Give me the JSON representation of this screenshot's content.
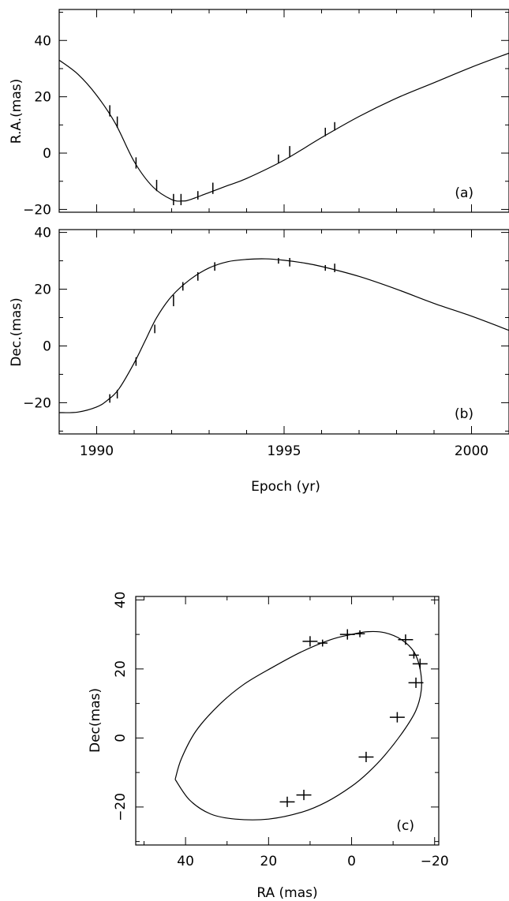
{
  "chart_data": [
    {
      "type": "line",
      "panel_label": "(a)",
      "ylabel": "R.A.(mas)",
      "xlabel": "",
      "xlim": [
        1989,
        2001
      ],
      "ylim": [
        -21,
        51
      ],
      "xticks": [
        1990,
        1995,
        2000
      ],
      "yticks": [
        -20,
        0,
        20,
        40
      ],
      "xtick_labels": [
        "",
        "",
        ""
      ],
      "ytick_labels": [
        "−20",
        "0",
        "20",
        "40"
      ],
      "model": {
        "x": [
          1989.0,
          1989.5,
          1990.0,
          1990.5,
          1991.0,
          1991.5,
          1992.0,
          1992.3,
          1992.5,
          1993.0,
          1993.5,
          1994.0,
          1995.0,
          1996.0,
          1997.0,
          1998.0,
          1999.0,
          2000.0,
          2001.0
        ],
        "y": [
          33,
          28,
          20.5,
          10.5,
          -3,
          -12,
          -16.5,
          -17,
          -16.5,
          -14,
          -11.5,
          -9,
          -2.5,
          5.5,
          13,
          19.5,
          25,
          30.5,
          35.5
        ]
      },
      "points": {
        "x": [
          1990.35,
          1990.55,
          1991.05,
          1991.6,
          1992.05,
          1992.25,
          1992.7,
          1993.1,
          1994.85,
          1995.15,
          1996.1,
          1996.35
        ],
        "y": [
          15,
          11,
          -3.5,
          -11.5,
          -16.5,
          -16.5,
          -15,
          -12.5,
          -2,
          0.5,
          7.5,
          9.5
        ],
        "yerr": [
          2,
          2,
          2,
          2,
          2,
          2,
          1.5,
          2,
          1.5,
          2,
          1.5,
          1.5
        ],
        "xerr": [
          0,
          0,
          0,
          0,
          0,
          0,
          0,
          0,
          0,
          0,
          0,
          0
        ]
      }
    },
    {
      "type": "line",
      "panel_label": "(b)",
      "ylabel": "Dec.(mas)",
      "xlabel": "Epoch (yr)",
      "xlim": [
        1989,
        2001
      ],
      "ylim": [
        -31,
        41
      ],
      "xticks": [
        1990,
        1995,
        2000
      ],
      "yticks": [
        -20,
        0,
        20,
        40
      ],
      "xtick_labels": [
        "1990",
        "1995",
        "2000"
      ],
      "ytick_labels": [
        "−20",
        "0",
        "20",
        "40"
      ],
      "model": {
        "x": [
          1989.0,
          1989.5,
          1990.0,
          1990.3,
          1990.6,
          1991.0,
          1991.3,
          1991.6,
          1992.0,
          1992.5,
          1993.0,
          1993.5,
          1994.0,
          1994.5,
          1995.0,
          1995.5,
          1996.0,
          1997.0,
          1998.0,
          1999.0,
          2000.0,
          2001.0
        ],
        "y": [
          -23.5,
          -23.3,
          -21.5,
          -19,
          -15,
          -6,
          2,
          10,
          17.5,
          23.5,
          27.5,
          29.7,
          30.5,
          30.7,
          30.2,
          29.3,
          28,
          24.5,
          20,
          15,
          10.5,
          5.5
        ]
      },
      "points": {
        "x": [
          1990.35,
          1990.55,
          1991.05,
          1991.55,
          1992.05,
          1992.3,
          1992.7,
          1993.15,
          1994.85,
          1995.15,
          1996.1,
          1996.35
        ],
        "y": [
          -18.5,
          -17,
          -5.5,
          6,
          16,
          21,
          24.5,
          28,
          30,
          29.5,
          27.5,
          27.5
        ],
        "yerr": [
          1.5,
          1.5,
          1.5,
          1.5,
          2,
          1.5,
          1.5,
          1.5,
          1,
          1.5,
          1,
          1.5
        ],
        "xerr": [
          0,
          0,
          0,
          0,
          0,
          0,
          0,
          0,
          0,
          0,
          0,
          0
        ]
      }
    },
    {
      "type": "scatter",
      "panel_label": "(c)",
      "xlabel": "RA (mas)",
      "ylabel": "Dec(mas)",
      "xlim": [
        52,
        -21
      ],
      "ylim": [
        -31,
        41
      ],
      "xticks": [
        40,
        20,
        0,
        -20
      ],
      "yticks": [
        -20,
        0,
        20,
        40
      ],
      "xtick_labels": [
        "40",
        "20",
        "0",
        "−20"
      ],
      "ytick_labels": [
        "−20",
        "0",
        "20",
        "40"
      ],
      "model": {
        "x": [
          42.5,
          41.0,
          37.5,
          32,
          26,
          19,
          12,
          5,
          0,
          -4,
          -8,
          -12,
          -15,
          -16.5,
          -16.8,
          -15.5,
          -12.5,
          -8,
          -4,
          0,
          6,
          12,
          20,
          28,
          34,
          39,
          42.5
        ],
        "y": [
          -12,
          -6,
          2,
          9.5,
          15.5,
          20.5,
          25,
          28.5,
          30,
          30.8,
          30.5,
          28.5,
          25,
          20,
          14,
          8,
          2,
          -5,
          -10,
          -14,
          -18.5,
          -21.5,
          -23.5,
          -23.5,
          -22,
          -18,
          -12
        ]
      },
      "points": {
        "x": [
          10,
          7,
          1,
          -2,
          -13,
          -15,
          -16.5,
          -15.5,
          -11,
          -3.5,
          15.5,
          11.5
        ],
        "y": [
          28,
          27.5,
          30,
          30.2,
          28.5,
          24,
          21.5,
          16,
          6,
          -5.5,
          -18.5,
          -16.5
        ],
        "xerr": [
          1.8,
          1.2,
          1.8,
          1.2,
          1.8,
          1.2,
          1.8,
          1.8,
          1.8,
          1.8,
          1.8,
          1.8
        ],
        "yerr": [
          1.5,
          1,
          1.5,
          1,
          1.5,
          1,
          1.5,
          1.5,
          1.5,
          1.5,
          1.5,
          1.5
        ]
      }
    }
  ]
}
